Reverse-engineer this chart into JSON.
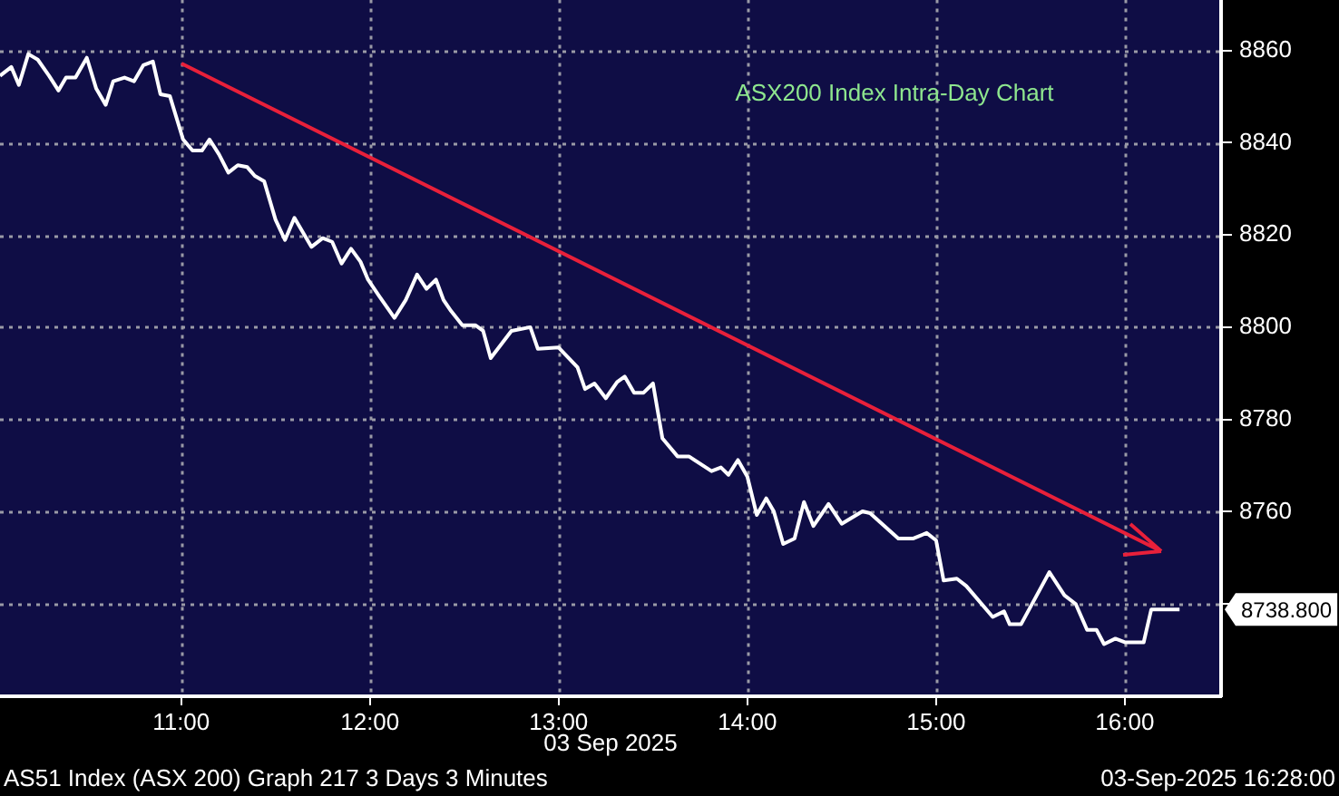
{
  "chart_data": {
    "type": "line",
    "title": "ASX200 Index Intra-Day Chart",
    "xlabel": "03 Sep 2025",
    "x": [
      10.04,
      10.1,
      10.14,
      10.19,
      10.24,
      10.3,
      10.35,
      10.39,
      10.44,
      10.5,
      10.55,
      10.6,
      10.64,
      10.7,
      10.75,
      10.8,
      10.85,
      10.89,
      10.94,
      11.01,
      11.06,
      11.11,
      11.15,
      11.2,
      11.25,
      11.3,
      11.35,
      11.39,
      11.44,
      11.5,
      11.55,
      11.6,
      11.64,
      11.69,
      11.75,
      11.8,
      11.85,
      11.9,
      11.95,
      11.99,
      12.05,
      12.13,
      12.19,
      12.25,
      12.3,
      12.35,
      12.39,
      12.43,
      12.49,
      12.56,
      12.6,
      12.64,
      12.75,
      12.85,
      12.89,
      13.0,
      13.1,
      13.14,
      13.19,
      13.25,
      13.31,
      13.35,
      13.4,
      13.45,
      13.5,
      13.55,
      13.63,
      13.69,
      13.81,
      13.86,
      13.9,
      13.95,
      14.0,
      14.05,
      14.1,
      14.14,
      14.19,
      14.25,
      14.3,
      14.35,
      14.43,
      14.5,
      14.61,
      14.65,
      14.8,
      14.88,
      14.95,
      15.0,
      15.04,
      15.11,
      15.16,
      15.3,
      15.36,
      15.39,
      15.45,
      15.6,
      15.68,
      15.74,
      15.8,
      15.85,
      15.89,
      15.95,
      16.0,
      16.1,
      16.14,
      16.29
    ],
    "series": [
      {
        "color": "#ffffff",
        "values": [
          8854.5,
          8856.4,
          8852.5,
          8859.2,
          8858,
          8854.5,
          8851.3,
          8854.1,
          8854.1,
          8858.4,
          8851.7,
          8848.2,
          8853.3,
          8854.1,
          8853.3,
          8856.8,
          8857.6,
          8850.5,
          8850.1,
          8840.7,
          8838.3,
          8838.3,
          8840.7,
          8837.5,
          8833.5,
          8835.1,
          8834.7,
          8832.8,
          8831.6,
          8823.3,
          8818.9,
          8823.7,
          8820.9,
          8817.4,
          8819.3,
          8818.5,
          8813.8,
          8817,
          8814.2,
          8810.3,
          8806.7,
          8802,
          8805.9,
          8811.4,
          8808.3,
          8810.3,
          8805.9,
          8803.5,
          8800.4,
          8800.4,
          8799.2,
          8793.3,
          8799.2,
          8800,
          8795.3,
          8795.6,
          8791.3,
          8786.6,
          8787.8,
          8784.6,
          8788.1,
          8789.3,
          8785.8,
          8785.8,
          8787.8,
          8775.9,
          8772,
          8772,
          8768.8,
          8769.6,
          8768,
          8771.2,
          8767.6,
          8759.3,
          8762.9,
          8760.1,
          8753,
          8754.2,
          8762.1,
          8756.9,
          8761.7,
          8757.4,
          8760.1,
          8759.7,
          8754.2,
          8754.2,
          8755.4,
          8753.8,
          8745.1,
          8745.5,
          8743.9,
          8737.2,
          8738.4,
          8735.6,
          8735.6,
          8746.9,
          8741.9,
          8740,
          8734.4,
          8734.4,
          8731.3,
          8732.5,
          8731.7,
          8731.7,
          8738.8,
          8738.8
        ]
      }
    ],
    "xlim": [
      10.04,
      16.51
    ],
    "ylim": [
      8720,
      8871
    ],
    "xticks": [
      {
        "value": 11,
        "label": "11:00"
      },
      {
        "value": 12,
        "label": "12:00"
      },
      {
        "value": 13,
        "label": "13:00"
      },
      {
        "value": 14,
        "label": "14:00"
      },
      {
        "value": 15,
        "label": "15:00"
      },
      {
        "value": 16,
        "label": "16:00"
      }
    ],
    "yticks": [
      {
        "value": 8740,
        "label": null
      },
      8760,
      8780,
      8800,
      8820,
      8840,
      8860
    ],
    "annotations": [
      "8738.800",
      "AS51 Index (ASX 200) Graph 217 3 Days 3 Minutes",
      "03-Sep-2025 16:28:00"
    ],
    "grid": true,
    "legend": false,
    "marker": "none",
    "line_style": "solid"
  }
}
